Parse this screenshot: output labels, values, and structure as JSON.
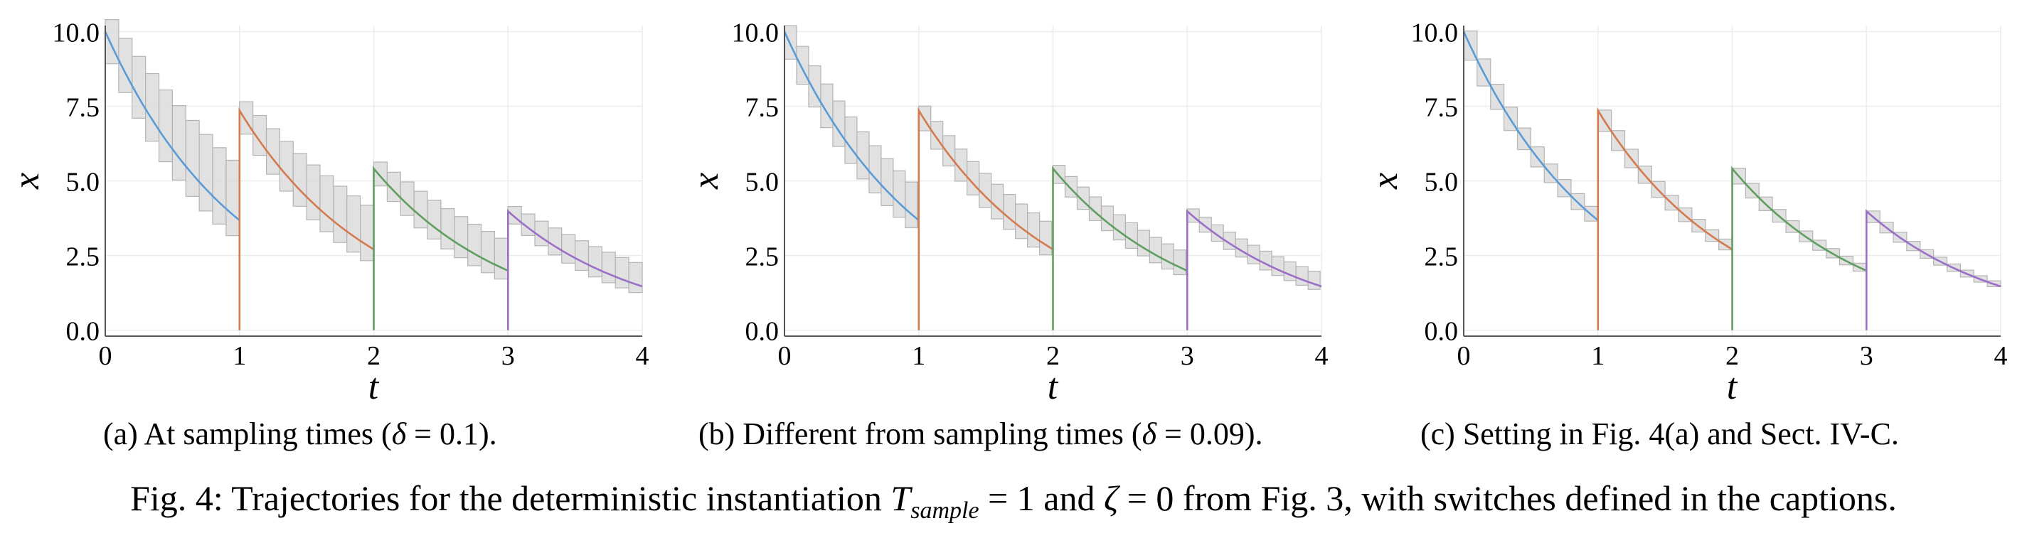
{
  "figure": {
    "caption": "Fig. 4: Trajectories for the deterministic instantiation T_sample = 1 and ζ = 0 from Fig. 3, with switches defined in the captions.",
    "caption_parts": {
      "prefix": "Fig. 4: Trajectories for the deterministic instantiation ",
      "T": "T",
      "sub": "sample",
      "eq1": " = 1 and ",
      "zeta": "ζ",
      "rest": " = 0 from Fig. 3, with switches defined in the captions."
    }
  },
  "subcaptions": [
    {
      "pre": "(a) At sampling times (",
      "sym": "δ",
      "post": " = 0.1)."
    },
    {
      "pre": "(b) Different from sampling times (",
      "sym": "δ",
      "post": " = 0.09)."
    },
    {
      "text": "(c) Setting in Fig. 4(a) and Sect. IV-C."
    }
  ],
  "colors": {
    "series": [
      "#5b9bd5",
      "#d47a4f",
      "#5f9e5f",
      "#9c6fc7"
    ],
    "box_fill": "#dcdcdc",
    "box_stroke": "#b4b4b4",
    "grid": "#ececec",
    "axis": "#555555"
  },
  "chart_data": [
    {
      "type": "line",
      "xlabel": "t",
      "ylabel": "x",
      "xlim": [
        0,
        4
      ],
      "ylim": [
        -0.2,
        10.2
      ],
      "xticks": [
        0,
        1,
        2,
        3,
        4
      ],
      "yticks": [
        0.0,
        2.5,
        5.0,
        7.5,
        10.0
      ],
      "ytick_labels": [
        "0.0",
        "2.5",
        "5.0",
        "7.5",
        "10.0"
      ],
      "grid": true,
      "model": {
        "x0": 10.0,
        "decay_rate": 1.0,
        "reset_factor": 2.0,
        "switch_times": [
          1,
          2,
          3
        ]
      },
      "reachable_sets": {
        "step": 0.1,
        "growth": 0.4
      },
      "series": [
        {
          "segment": [
            0,
            1
          ],
          "color_index": 0
        },
        {
          "segment": [
            1,
            2
          ],
          "color_index": 1
        },
        {
          "segment": [
            2,
            3
          ],
          "color_index": 2
        },
        {
          "segment": [
            3,
            4
          ],
          "color_index": 3
        }
      ]
    },
    {
      "type": "line",
      "xlabel": "t",
      "ylabel": "x",
      "xlim": [
        0,
        4
      ],
      "ylim": [
        -0.2,
        10.2
      ],
      "xticks": [
        0,
        1,
        2,
        3,
        4
      ],
      "yticks": [
        0.0,
        2.5,
        5.0,
        7.5,
        10.0
      ],
      "ytick_labels": [
        "0.0",
        "2.5",
        "5.0",
        "7.5",
        "10.0"
      ],
      "grid": true,
      "model": {
        "x0": 10.0,
        "decay_rate": 1.0,
        "reset_factor": 2.0,
        "switch_times": [
          1,
          2,
          3
        ]
      },
      "reachable_sets": {
        "step": 0.09,
        "growth": 0.22
      },
      "series": [
        {
          "segment": [
            0,
            1
          ],
          "color_index": 0
        },
        {
          "segment": [
            1,
            2
          ],
          "color_index": 1
        },
        {
          "segment": [
            2,
            3
          ],
          "color_index": 2
        },
        {
          "segment": [
            3,
            4
          ],
          "color_index": 3
        }
      ]
    },
    {
      "type": "line",
      "xlabel": "t",
      "ylabel": "x",
      "xlim": [
        0,
        4
      ],
      "ylim": [
        -0.2,
        10.2
      ],
      "xticks": [
        0,
        1,
        2,
        3,
        4
      ],
      "yticks": [
        0.0,
        2.5,
        5.0,
        7.5,
        10.0
      ],
      "ytick_labels": [
        "0.0",
        "2.5",
        "5.0",
        "7.5",
        "10.0"
      ],
      "grid": true,
      "model": {
        "x0": 10.0,
        "decay_rate": 1.0,
        "reset_factor": 2.0,
        "switch_times": [
          1,
          2,
          3
        ]
      },
      "reachable_sets": {
        "step": 0.1,
        "growth": 0.02
      },
      "series": [
        {
          "segment": [
            0,
            1
          ],
          "color_index": 0
        },
        {
          "segment": [
            1,
            2
          ],
          "color_index": 1
        },
        {
          "segment": [
            2,
            3
          ],
          "color_index": 2
        },
        {
          "segment": [
            3,
            4
          ],
          "color_index": 3
        }
      ]
    }
  ]
}
